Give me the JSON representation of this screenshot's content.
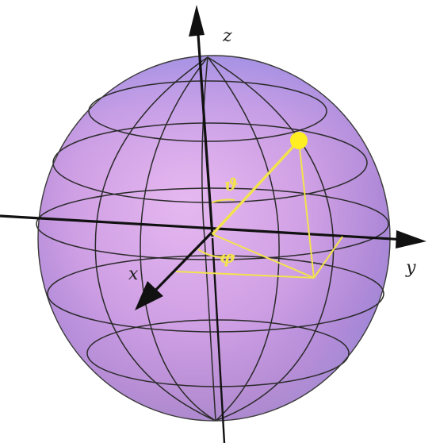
{
  "axes": {
    "x_label": "x",
    "y_label": "y",
    "z_label": "z"
  },
  "angles": {
    "theta_label": "ϑ",
    "phi_label": "φ"
  },
  "colors": {
    "sphere_top": "#9c9ce6",
    "sphere_mid": "#d9a3e6",
    "sphere_bottom": "#c98fc9",
    "axis": "#111111",
    "grid": "#2a2a2a",
    "construction": "#f2e34d",
    "point": "#ffee22"
  },
  "icons": {
    "point_marker": "state-point-icon",
    "axis_arrow": "arrowhead-icon"
  }
}
